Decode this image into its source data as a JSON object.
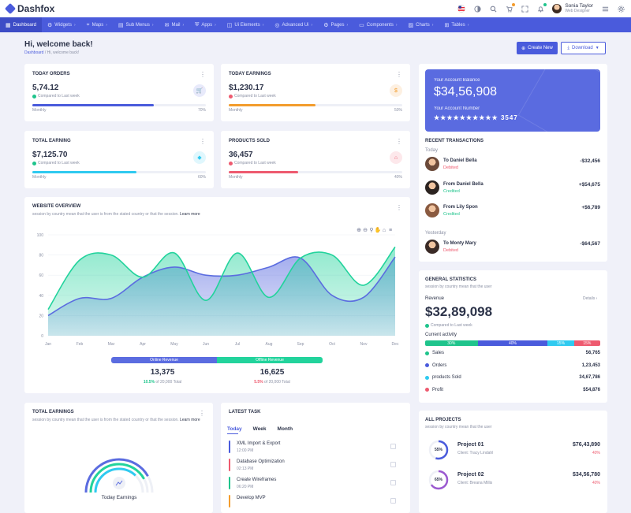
{
  "brand": {
    "name": "Dashfox",
    "color": "#4a5bdc"
  },
  "user": {
    "name": "Sonia Taylor",
    "role": "Web Designer"
  },
  "top_icons": [
    "flag-us-icon",
    "moon-icon",
    "search-icon",
    "cart-icon",
    "expand-icon",
    "bell-icon",
    "menu-icon",
    "gear-icon"
  ],
  "nav": [
    {
      "label": "Dashboard",
      "glyph": "▦",
      "active": true
    },
    {
      "label": "Widgets",
      "glyph": "⚙",
      "chev": true
    },
    {
      "label": "Maps",
      "glyph": "⌖",
      "chev": true
    },
    {
      "label": "Sub Menus",
      "glyph": "▤",
      "chev": true
    },
    {
      "label": "Mail",
      "glyph": "✉",
      "chev": true
    },
    {
      "label": "Apps",
      "glyph": "⛨",
      "chev": true
    },
    {
      "label": "Ui Elements",
      "glyph": "◫",
      "chev": true
    },
    {
      "label": "Advanced Ui",
      "glyph": "◎",
      "chev": true
    },
    {
      "label": "Pages",
      "glyph": "⚙",
      "chev": true
    },
    {
      "label": "Components",
      "glyph": "▭",
      "chev": true
    },
    {
      "label": "Charts",
      "glyph": "▨",
      "chev": true
    },
    {
      "label": "Tables",
      "glyph": "⊞",
      "chev": true
    }
  ],
  "page": {
    "title": "Hi, welcome back!",
    "crumb_home": "Dashboard",
    "crumb_current": "Hi, welcome back!"
  },
  "actions": {
    "create": "Create New",
    "download": "Download"
  },
  "stats": [
    {
      "title": "TODAY ORDERS",
      "value": "5,74.12",
      "sub": "Compared to Last week",
      "dir": "up",
      "label": "Monthly",
      "pct": "70%",
      "fill": 0.7,
      "color": "#4a5bdc",
      "icon": "cart-icon",
      "glyph": "🛒",
      "icon_bg": "#e8eafb"
    },
    {
      "title": "TODAY EARNINGS",
      "value": "$1,230.17",
      "sub": "Compared to Last week",
      "dir": "down",
      "label": "Monthly",
      "pct": "50%",
      "fill": 0.5,
      "color": "#f39c2d",
      "icon": "currency-icon",
      "glyph": "$",
      "icon_bg": "#fdf0e1"
    },
    {
      "title": "TOTAL EARNING",
      "value": "$7,125.70",
      "sub": "Compared to Last week",
      "dir": "up",
      "label": "Monthly",
      "pct": "60%",
      "fill": 0.6,
      "color": "#2fcaf0",
      "icon": "diamond-icon",
      "glyph": "◆",
      "icon_bg": "#e0f7fd"
    },
    {
      "title": "PRODUCTS SOLD",
      "value": "36,457",
      "sub": "Compared to Last week",
      "dir": "down",
      "label": "Monthly",
      "pct": "40%",
      "fill": 0.4,
      "color": "#ee5a6f",
      "icon": "bag-icon",
      "glyph": "⌂",
      "icon_bg": "#fde8eb"
    }
  ],
  "account": {
    "balance_label": "Your Account Balance",
    "balance": "$34,56,908",
    "number_label": "Your Account Number",
    "number": "★★★★★★★★★★ 3547"
  },
  "transactions": {
    "title": "RECENT TRANSACTIONS",
    "today_label": "Today",
    "yesterday_label": "Yesterday",
    "today": [
      {
        "name": "To Daniel Bella",
        "status": "Debited",
        "amount": "-$32,456",
        "status_color": "#ee5a6f"
      },
      {
        "name": "From Daniel Bella",
        "status": "Credited",
        "amount": "+$54,675",
        "status_color": "#1fc48c"
      },
      {
        "name": "From Lily Spon",
        "status": "Credited",
        "amount": "+$6,789",
        "status_color": "#1fc48c"
      }
    ],
    "yesterday": [
      {
        "name": "To Monty Mary",
        "status": "Debited",
        "amount": "-$64,567",
        "status_color": "#ee5a6f"
      }
    ]
  },
  "overview": {
    "title": "WEBSITE OVERVIEW",
    "subtitle": "session by country mean that the user is from the stated country or that the session.",
    "learn": "Learn more",
    "online_label": "Online Revenue",
    "offline_label": "Offline Revenue",
    "online_value": "13,375",
    "online_pct": "10.5%",
    "online_pct_sub": "of 20,000 Total",
    "offline_value": "16,625",
    "offline_pct": "5.5%",
    "offline_pct_sub": "of 20,000 Total"
  },
  "chart_data": {
    "type": "area",
    "categories": [
      "Jan",
      "Feb",
      "Mar",
      "Apr",
      "May",
      "Jun",
      "Jul",
      "Aug",
      "Sep",
      "Oct",
      "Nov",
      "Dec"
    ],
    "ylim": [
      0,
      100
    ],
    "yticks": [
      0,
      20,
      40,
      60,
      80,
      100
    ],
    "series": [
      {
        "color": "#5b6ce0",
        "values": [
          20,
          37,
          37,
          58,
          68,
          60,
          60,
          68,
          77,
          40,
          38,
          78
        ]
      },
      {
        "color": "#22d39c",
        "values": [
          26,
          75,
          80,
          58,
          82,
          35,
          82,
          38,
          77,
          80,
          50,
          88
        ]
      }
    ],
    "toolbar_icons": [
      "zoom-in-icon",
      "zoom-out-icon",
      "magnifier-icon",
      "pan-icon",
      "home-icon",
      "menu-icon"
    ]
  },
  "general": {
    "title": "GENERAL STATISTICS",
    "subtitle": "session by country mean that the user",
    "revenue_label": "Revenue",
    "details": "Details ›",
    "revenue": "$32,89,098",
    "revenue_sub": "Compared to Last week",
    "activity_label": "Current activity",
    "activity": [
      {
        "pct": "30%",
        "share": 30,
        "color": "#1fc48c"
      },
      {
        "pct": "40%",
        "share": 40,
        "color": "#4a5bdc"
      },
      {
        "pct": "15%",
        "share": 15,
        "color": "#2fcaf0"
      },
      {
        "pct": "15%",
        "share": 15,
        "color": "#ee5a6f"
      }
    ],
    "rows": [
      {
        "label": "Sales",
        "value": "56,765",
        "color": "#1fc48c"
      },
      {
        "label": "Orders",
        "value": "1,23,453",
        "color": "#4a5bdc"
      },
      {
        "label": "products Sold",
        "value": "34,67,786",
        "color": "#2fcaf0"
      },
      {
        "label": "Profit",
        "value": "$54,876",
        "color": "#ee5a6f"
      }
    ]
  },
  "total_earnings": {
    "title": "TOTAL EARNINGS",
    "subtitle": "session by country mean that the user is from the stated country or that the session.",
    "learn": "Learn more",
    "label": "Today Earnings"
  },
  "tasks": {
    "title": "LATEST TASK",
    "tabs": [
      "Today",
      "Week",
      "Month"
    ],
    "items": [
      {
        "name": "XML Import & Export",
        "time": "12:00 PM",
        "color": "#4a5bdc"
      },
      {
        "name": "Database Optimization",
        "time": "02:13 PM",
        "color": "#ee5a6f"
      },
      {
        "name": "Create Wireframes",
        "time": "06:20 PM",
        "color": "#1fc48c"
      },
      {
        "name": "Develop MVP",
        "time": "",
        "color": "#f39c2d"
      }
    ]
  },
  "projects": {
    "title": "ALL PROJECTS",
    "subtitle": "session by country mean that the user",
    "items": [
      {
        "name": "Project 01",
        "client": "Client: Tracy Lindahl",
        "amount": "$76,43,890",
        "pct": "40%",
        "progress": "55%",
        "fill": 0.55,
        "color": "#4a5bdc"
      },
      {
        "name": "Project 02",
        "client": "Client: Breana Millis",
        "amount": "$34,56,780",
        "pct": "40%",
        "progress": "65%",
        "fill": 0.65,
        "color": "#9b59d0"
      }
    ]
  }
}
